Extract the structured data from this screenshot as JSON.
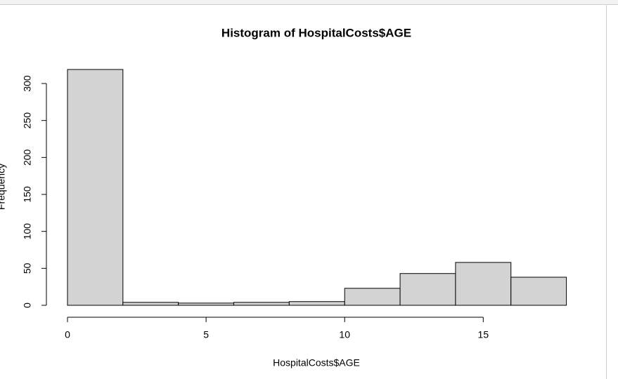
{
  "chart_data": {
    "type": "histogram",
    "title": "Histogram of HospitalCosts$AGE",
    "x_label": "HospitalCosts$AGE",
    "y_label": "Frequency",
    "bins": [
      0,
      2,
      4,
      6,
      8,
      10,
      12,
      14,
      16,
      18
    ],
    "values": [
      319,
      4,
      3,
      4,
      5,
      23,
      43,
      58,
      38
    ],
    "color": "#d3d3d3",
    "xlim": [
      0,
      18
    ],
    "xticks": [
      0,
      5,
      10,
      15
    ],
    "ylim": [
      0,
      319
    ],
    "yticks": [
      0,
      50,
      100,
      150,
      200,
      250,
      300
    ]
  }
}
